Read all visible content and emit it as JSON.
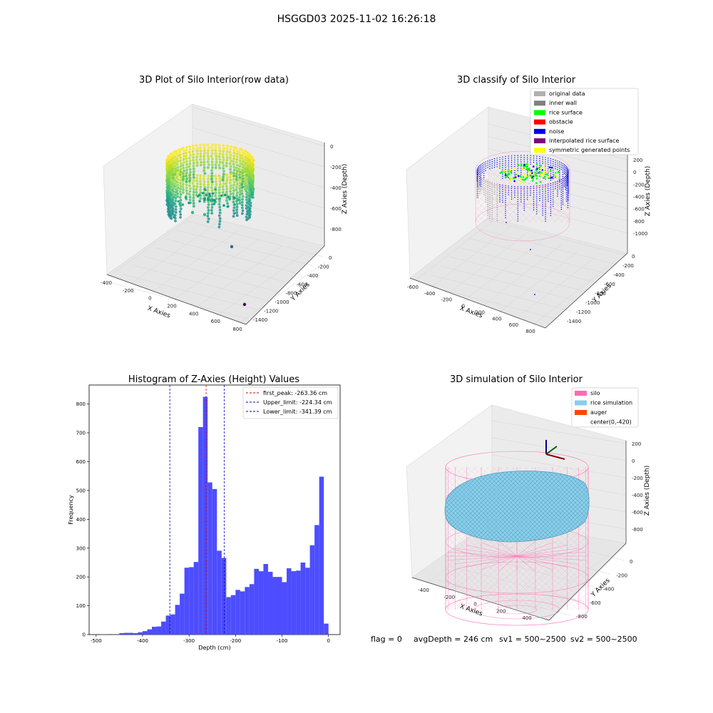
{
  "figure": {
    "suptitle": "HSGGD03 2025-11-02 16:26:18",
    "status": {
      "flag": "flag = 0",
      "avg": "avgDepth = 246 cm",
      "sv1": "sv1 = 500~2500",
      "sv2": "sv2 = 500~2500"
    }
  },
  "chart_data": [
    {
      "type": "scatter",
      "projection": "3d",
      "title": "3D Plot of Silo Interior(row data)",
      "xlabel": "X Axies",
      "ylabel": "Y Axies",
      "zlabel": "Z Axies (Depth)",
      "xticks": [
        "-400",
        "-200",
        "0",
        "200",
        "400",
        "600",
        "800"
      ],
      "yticks": [
        "0",
        "-200",
        "-400",
        "-600",
        "-800",
        "-1000",
        "-1200",
        "-1400"
      ],
      "zticks": [
        "0",
        "-200",
        "-400",
        "-600",
        "-800"
      ],
      "colormap": "viridis",
      "outliers": [
        [
          620,
          -800,
          -900
        ],
        [
          780,
          -1300,
          -950
        ]
      ]
    },
    {
      "type": "scatter",
      "projection": "3d",
      "title": "3D classify of Silo Interior",
      "xlabel": "X Axies",
      "ylabel": "Y Axies",
      "zlabel": "Z Axies (Depth)",
      "xticks": [
        "-600",
        "-400",
        "-200",
        "0",
        "200",
        "400",
        "600",
        "800"
      ],
      "yticks": [
        "0",
        "-200",
        "-400",
        "-600",
        "-800",
        "-1000",
        "-1200",
        "-1400"
      ],
      "zticks": [
        "200",
        "0",
        "-200",
        "-400",
        "-600",
        "-800",
        "-1000"
      ],
      "legend": [
        {
          "label": "original data",
          "color": "#b0b0b0"
        },
        {
          "label": "inner wall",
          "color": "#808080"
        },
        {
          "label": "rice surface",
          "color": "#00ff00"
        },
        {
          "label": "obstacle",
          "color": "#ff0000"
        },
        {
          "label": "noise",
          "color": "#0000ee"
        },
        {
          "label": "interpolated rice surface",
          "color": "#800080"
        },
        {
          "label": "symmetric generated points",
          "color": "#ffff00"
        }
      ],
      "legend_loc": "upper right"
    },
    {
      "type": "bar",
      "title": "Histogram of Z-Axies (Height) Values",
      "xlabel": "Depth (cm)",
      "ylabel": "Frequency",
      "xlim": [
        -515,
        25
      ],
      "ylim": [
        0,
        866
      ],
      "xticks": [
        -500,
        -400,
        -300,
        -200,
        -100,
        0
      ],
      "yticks": [
        0,
        100,
        200,
        300,
        400,
        500,
        600,
        700,
        800
      ],
      "bin_width": 10,
      "bar_color": "#4d4dff",
      "bins": [
        [
          -490,
          1
        ],
        [
          -450,
          5
        ],
        [
          -440,
          6
        ],
        [
          -430,
          6
        ],
        [
          -420,
          5
        ],
        [
          -410,
          8
        ],
        [
          -400,
          12
        ],
        [
          -390,
          18
        ],
        [
          -380,
          27
        ],
        [
          -370,
          28
        ],
        [
          -360,
          45
        ],
        [
          -350,
          66
        ],
        [
          -340,
          70
        ],
        [
          -330,
          103
        ],
        [
          -320,
          142
        ],
        [
          -310,
          232
        ],
        [
          -300,
          234
        ],
        [
          -290,
          252
        ],
        [
          -280,
          720
        ],
        [
          -270,
          825
        ],
        [
          -260,
          528
        ],
        [
          -250,
          505
        ],
        [
          -240,
          291
        ],
        [
          -230,
          266
        ],
        [
          -220,
          130
        ],
        [
          -210,
          137
        ],
        [
          -200,
          155
        ],
        [
          -190,
          150
        ],
        [
          -180,
          165
        ],
        [
          -170,
          175
        ],
        [
          -160,
          228
        ],
        [
          -150,
          220
        ],
        [
          -140,
          245
        ],
        [
          -130,
          218
        ],
        [
          -120,
          200
        ],
        [
          -110,
          200
        ],
        [
          -100,
          182
        ],
        [
          -90,
          230
        ],
        [
          -80,
          220
        ],
        [
          -70,
          222
        ],
        [
          -60,
          250
        ],
        [
          -50,
          232
        ],
        [
          -40,
          310
        ],
        [
          -30,
          380
        ],
        [
          -20,
          548
        ],
        [
          -10,
          38
        ]
      ],
      "vlines": [
        {
          "label": "first_peak: -263.36 cm",
          "x": -263.36,
          "color": "#dd0000"
        },
        {
          "label": "Upper_limit: -224.34 cm",
          "x": -224.34,
          "color": "#0000cc"
        },
        {
          "label": "Lower_limit: -341.39 cm",
          "x": -341.39,
          "color": "#0000cc"
        }
      ],
      "legend_loc": "upper right"
    },
    {
      "type": "surface",
      "projection": "3d",
      "title": "3D simulation of Silo Interior",
      "xlabel": "X Axies",
      "ylabel": "Y Axies",
      "zlabel": "Z Axies (Depth)",
      "xticks": [
        "-400",
        "-200",
        "0",
        "200",
        "400"
      ],
      "yticks": [
        "0",
        "-200",
        "-400",
        "-600",
        "-800"
      ],
      "zticks": [
        "200",
        "0",
        "-200",
        "-400",
        "-600",
        "-800"
      ],
      "legend": [
        {
          "label": "silo",
          "color": "#ff69b4"
        },
        {
          "label": "rice simulation",
          "color": "#87ceeb"
        },
        {
          "label": "auger",
          "color": "#ff4500"
        },
        {
          "label": "center(0,-420)",
          "color": ""
        }
      ],
      "legend_loc": "upper right"
    }
  ]
}
